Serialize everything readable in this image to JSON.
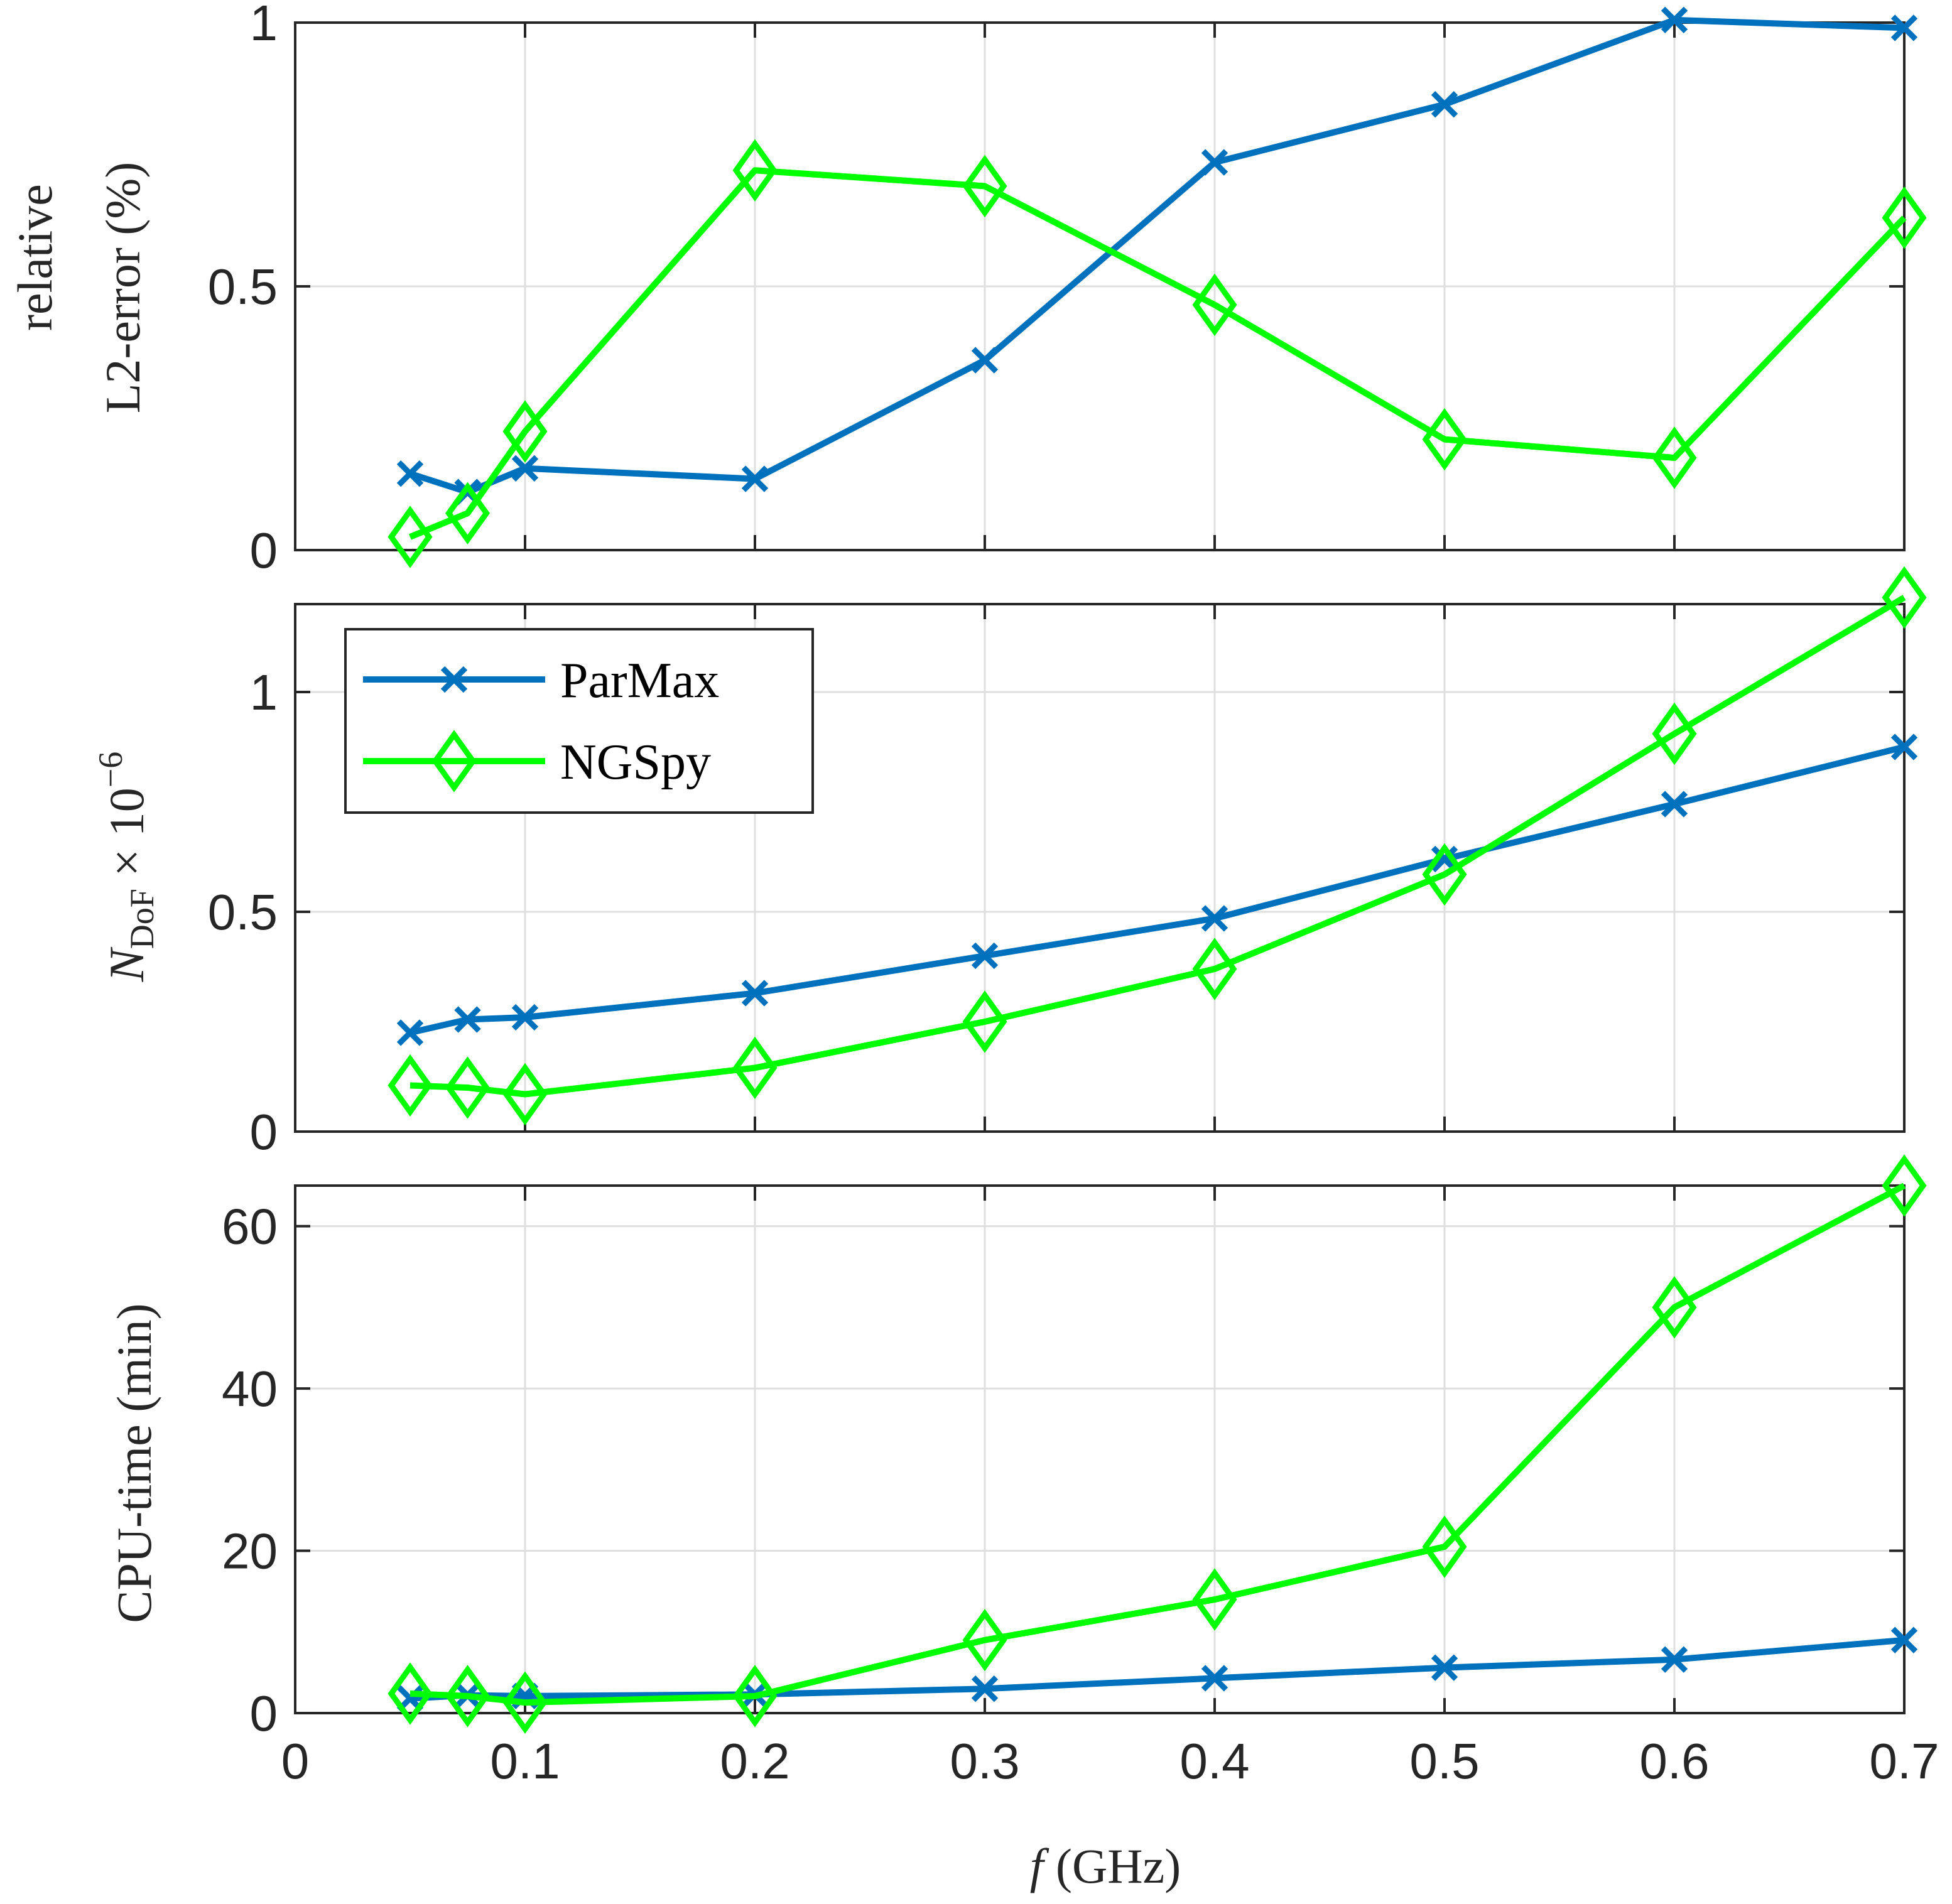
{
  "colors": {
    "parmax": "#0072BD",
    "ngspy": "#00FF00",
    "axis": "#262626",
    "grid": "#dfdfdf"
  },
  "legend": {
    "entries": [
      "ParMax",
      "NGSpy"
    ],
    "placement": "top-left of middle panel"
  },
  "chart_data": [
    {
      "type": "line",
      "panel": "top",
      "ylabel_line1": "relative",
      "ylabel_line2": "L2-error (%)",
      "ylim": [
        0,
        1
      ],
      "yticks": [
        0,
        0.5,
        1
      ],
      "ytick_labels": [
        "0",
        "0.5",
        "1"
      ],
      "xlim": [
        0,
        0.7
      ],
      "xticks": [
        0,
        0.1,
        0.2,
        0.3,
        0.4,
        0.5,
        0.6,
        0.7
      ],
      "grid": true,
      "series": [
        {
          "name": "ParMax",
          "marker": "x",
          "x": [
            0.05,
            0.075,
            0.1,
            0.2,
            0.3,
            0.4,
            0.5,
            0.6,
            0.7
          ],
          "y": [
            0.145,
            0.11,
            0.155,
            0.135,
            0.36,
            0.735,
            0.845,
            1.005,
            0.99
          ]
        },
        {
          "name": "NGSpy",
          "marker": "diamond",
          "x": [
            0.05,
            0.075,
            0.1,
            0.2,
            0.3,
            0.4,
            0.5,
            0.6,
            0.7
          ],
          "y": [
            0.025,
            0.07,
            0.225,
            0.72,
            0.69,
            0.465,
            0.21,
            0.175,
            0.63
          ]
        }
      ]
    },
    {
      "type": "line",
      "panel": "middle",
      "ylabel_main": "N",
      "ylabel_sub": "DoF",
      "ylabel_rest": " × 10",
      "ylabel_sup": "−6",
      "ylim": [
        0,
        1.2
      ],
      "yticks": [
        0,
        0.5,
        1
      ],
      "ytick_labels": [
        "0",
        "0.5",
        "1"
      ],
      "xlim": [
        0,
        0.7
      ],
      "xticks": [
        0,
        0.1,
        0.2,
        0.3,
        0.4,
        0.5,
        0.6,
        0.7
      ],
      "grid": true,
      "series": [
        {
          "name": "ParMax",
          "marker": "x",
          "x": [
            0.05,
            0.075,
            0.1,
            0.2,
            0.3,
            0.4,
            0.5,
            0.6,
            0.7
          ],
          "y": [
            0.225,
            0.255,
            0.26,
            0.315,
            0.4,
            0.485,
            0.62,
            0.745,
            0.875
          ]
        },
        {
          "name": "NGSpy",
          "marker": "diamond",
          "x": [
            0.05,
            0.075,
            0.1,
            0.2,
            0.3,
            0.4,
            0.5,
            0.6,
            0.7
          ],
          "y": [
            0.105,
            0.1,
            0.085,
            0.145,
            0.25,
            0.37,
            0.585,
            0.905,
            1.215
          ]
        }
      ]
    },
    {
      "type": "line",
      "panel": "bottom",
      "ylabel": "CPU-time (min)",
      "ylim": [
        0,
        65
      ],
      "yticks": [
        0,
        20,
        40,
        60
      ],
      "ytick_labels": [
        "0",
        "20",
        "40",
        "60"
      ],
      "xlim": [
        0,
        0.7
      ],
      "xticks": [
        0,
        0.1,
        0.2,
        0.3,
        0.4,
        0.5,
        0.6,
        0.7
      ],
      "xtick_labels": [
        "0",
        "0.1",
        "0.2",
        "0.3",
        "0.4",
        "0.5",
        "0.6",
        "0.7"
      ],
      "xlabel_var": "f",
      "xlabel_unit": " (GHz)",
      "grid": true,
      "series": [
        {
          "name": "ParMax",
          "marker": "x",
          "x": [
            0.05,
            0.075,
            0.1,
            0.2,
            0.3,
            0.4,
            0.5,
            0.6,
            0.7
          ],
          "y": [
            1.8,
            2.2,
            2.1,
            2.3,
            3.0,
            4.3,
            5.6,
            6.6,
            9.0
          ]
        },
        {
          "name": "NGSpy",
          "marker": "diamond",
          "x": [
            0.05,
            0.075,
            0.1,
            0.2,
            0.3,
            0.4,
            0.5,
            0.6,
            0.7
          ],
          "y": [
            2.4,
            2.1,
            1.3,
            2.1,
            9.0,
            14.0,
            20.5,
            50.0,
            65.0
          ]
        }
      ]
    }
  ]
}
